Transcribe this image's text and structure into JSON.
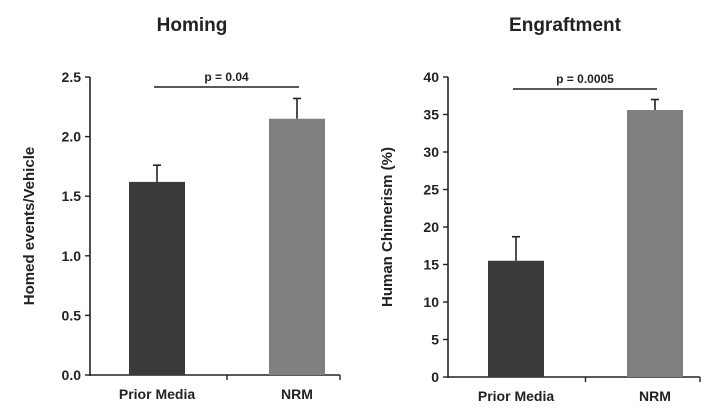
{
  "chart_data": [
    {
      "type": "bar",
      "title": "Homing",
      "ylabel": "Homed events/Vehicle",
      "xlabel": "",
      "categories": [
        "Prior Media",
        "NRM"
      ],
      "values": [
        1.62,
        2.15
      ],
      "errors": [
        0.14,
        0.17
      ],
      "bar_colors": [
        "#3a3a3a",
        "#808080"
      ],
      "ylim": [
        0,
        2.5
      ],
      "yticks": [
        "0.0",
        "0.5",
        "1.0",
        "1.5",
        "2.0",
        "2.5"
      ],
      "grid": false,
      "significance": "p = 0.04"
    },
    {
      "type": "bar",
      "title": "Engraftment",
      "ylabel": "Human Chimerism (%)",
      "xlabel": "",
      "categories": [
        "Prior Media",
        "NRM"
      ],
      "values": [
        15.5,
        35.6
      ],
      "errors": [
        3.2,
        1.4
      ],
      "bar_colors": [
        "#3a3a3a",
        "#808080"
      ],
      "ylim": [
        0,
        40
      ],
      "yticks": [
        "0",
        "5",
        "10",
        "15",
        "20",
        "25",
        "30",
        "35",
        "40"
      ],
      "grid": false,
      "significance": "p = 0.0005"
    }
  ]
}
